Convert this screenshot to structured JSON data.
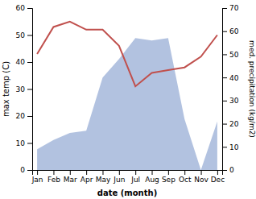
{
  "chart_data": {
    "type": "line",
    "categories": [
      "Jan",
      "Feb",
      "Mar",
      "Apr",
      "May",
      "Jun",
      "Jul",
      "Aug",
      "Sep",
      "Oct",
      "Nov",
      "Dec"
    ],
    "xlabel": "date (month)",
    "ylabel": "max temp (C)",
    "y2label": "med. precipitation (kg/m2)",
    "series": [
      {
        "type": "line",
        "color": "#c0504d",
        "values": [
          43,
          53,
          55,
          52,
          52,
          46,
          31,
          36,
          37,
          38,
          42,
          50
        ]
      },
      {
        "type": "area",
        "axis": "y2",
        "color": "#aabbdd",
        "values": [
          9,
          13,
          16,
          17,
          40,
          48,
          57,
          56,
          57,
          22,
          0,
          21
        ]
      }
    ],
    "ylim": [
      0,
      60
    ],
    "yticks": [
      0,
      10,
      20,
      30,
      40,
      50,
      60
    ],
    "y2lim": [
      0,
      70
    ],
    "y2ticks": [
      0,
      10,
      20,
      30,
      40,
      50,
      60,
      70
    ],
    "grid": false
  }
}
